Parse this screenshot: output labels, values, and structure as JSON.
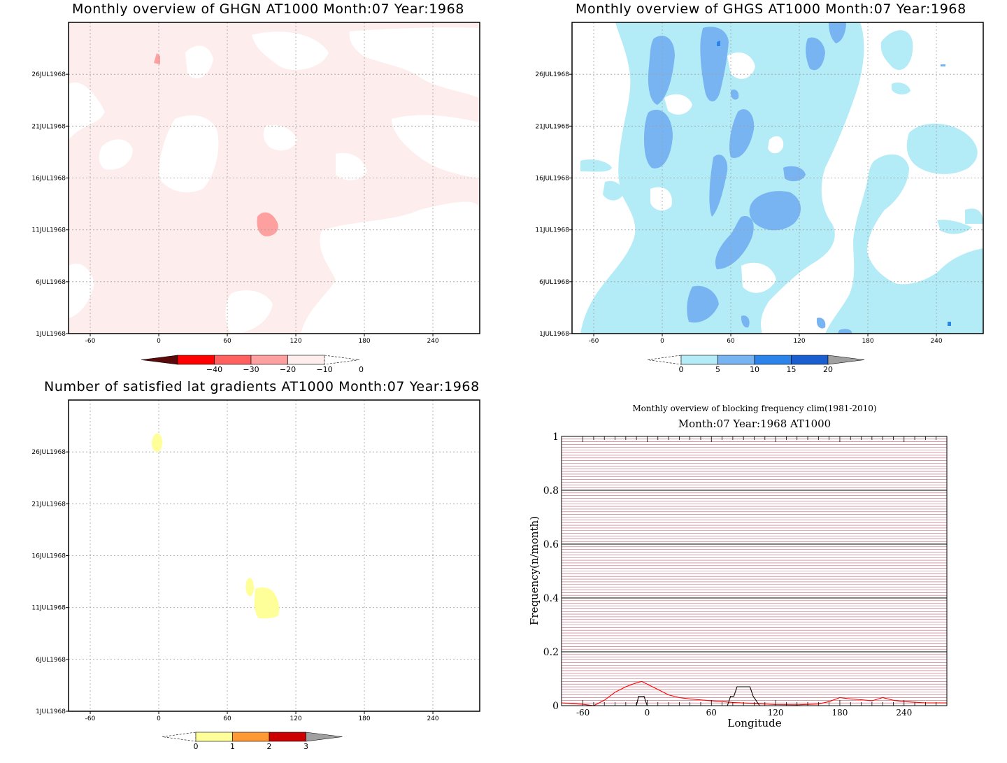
{
  "panels": {
    "ghgn": {
      "title": "Monthly overview of GHGN AT1000 Month:07 Year:1968",
      "fill_color": "#fdeeed",
      "colorbar": {
        "colors": [
          "#5a0a0a",
          "#ff0000",
          "#ff6060",
          "#ffa0a0",
          "#fdeeed"
        ],
        "labels": [
          "−40",
          "−30",
          "−20",
          "−10",
          "0"
        ]
      }
    },
    "ghgs": {
      "title": "Monthly overview of GHGS AT1000 Month:07 Year:1968",
      "fill_color": "#b3ecf7",
      "colorbar": {
        "colors": [
          "#b3ecf7",
          "#78b4f2",
          "#2a84ea",
          "#1a5fcf",
          "#a0a0a0"
        ],
        "labels": [
          "0",
          "5",
          "10",
          "15",
          "20"
        ]
      }
    },
    "satisfied": {
      "title": "Number of satisfied lat gradients AT1000 Month:07 Year:1968",
      "fill_color": "#ffff99",
      "colorbar": {
        "colors": [
          "#ffff99",
          "#ff9933",
          "#cc0000",
          "#a0a0a0"
        ],
        "labels": [
          "0",
          "1",
          "2",
          "3"
        ]
      }
    }
  },
  "axes": {
    "lon_ticks": [
      "-60",
      "0",
      "60",
      "120",
      "180",
      "240"
    ],
    "date_ticks": [
      "1JUL1968",
      "6JUL1968",
      "11JUL1968",
      "16JUL1968",
      "21JUL1968",
      "26JUL1968"
    ]
  },
  "chart_data": {
    "type": "line",
    "title": "Monthly overview of blocking frequency clim(1981-2010)",
    "subtitle": "Month:07 Year:1968  AT1000",
    "xlabel": "Longitude",
    "ylabel": "Frequency(n/month)",
    "xlim": [
      -80,
      280
    ],
    "ylim": [
      0,
      1
    ],
    "x_ticks": [
      "-60",
      "0",
      "60",
      "120",
      "180",
      "240"
    ],
    "y_ticks": [
      "0",
      "0.2",
      "0.4",
      "0.6",
      "0.8",
      "1"
    ],
    "grid": true,
    "series": [
      {
        "color": "#ff0000",
        "x": [
          -80,
          -60,
          -50,
          -40,
          -30,
          -20,
          -10,
          -5,
          0,
          10,
          20,
          30,
          40,
          60,
          80,
          100,
          120,
          140,
          160,
          170,
          180,
          190,
          200,
          210,
          220,
          230,
          240,
          260,
          280
        ],
        "y": [
          0.01,
          0.005,
          0.0,
          0.02,
          0.05,
          0.07,
          0.085,
          0.09,
          0.08,
          0.06,
          0.04,
          0.03,
          0.025,
          0.018,
          0.012,
          0.008,
          0.004,
          0.003,
          0.006,
          0.015,
          0.03,
          0.025,
          0.022,
          0.018,
          0.03,
          0.02,
          0.015,
          0.01,
          0.01
        ]
      },
      {
        "color": "#000000",
        "x": [
          -80,
          -10,
          -8,
          -3,
          0,
          2,
          75,
          78,
          81,
          84,
          87,
          96,
          99,
          105,
          280
        ],
        "y": [
          0,
          0,
          0.035,
          0.035,
          0,
          0,
          0,
          0.035,
          0.035,
          0.07,
          0.07,
          0.07,
          0.035,
          0,
          0
        ]
      }
    ]
  }
}
